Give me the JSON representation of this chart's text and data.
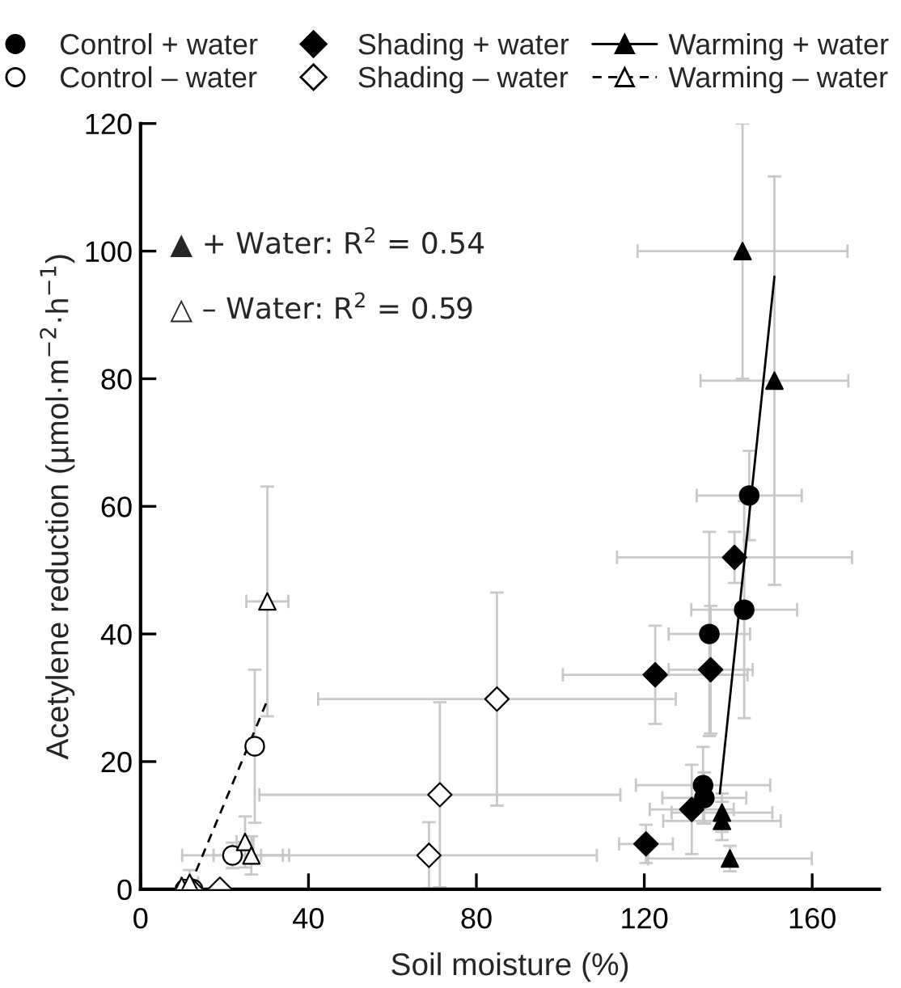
{
  "chart_data": {
    "type": "scatter",
    "xlabel": "Soil moisture (%)",
    "ylabel": "Acetylene reduction (µmol·m$^{−2}$·h$^{−1}$)",
    "xlim": [
      0,
      176
    ],
    "xticks": [
      0,
      40,
      80,
      120,
      160
    ],
    "ylim": [
      0,
      120
    ],
    "yticks": [
      0,
      20,
      40,
      60,
      80,
      100,
      120
    ],
    "grid": false,
    "legend": "top",
    "annotations": [
      "▲ + Water: R$^{2}$ = 0.54",
      "△ – Water: R$^{2}$ = 0.59"
    ],
    "series": [
      {
        "name": "Control + water",
        "marker": "circle",
        "color": "#000000",
        "x": [
          143.8,
          135.5,
          134,
          134.3,
          145
        ],
        "values": [
          43.8,
          40,
          16.3,
          14.3,
          61.7
        ],
        "errors": [
          17,
          16,
          6,
          4,
          7
        ],
        "xerrors": [
          12.6,
          9.7,
          16,
          10,
          12.5
        ]
      },
      {
        "name": "Control – water",
        "marker": "circle",
        "color": "#ffffff",
        "x": [
          27.2,
          21.9,
          12.5,
          10.6
        ],
        "values": [
          22.4,
          5.3,
          0,
          0
        ],
        "errors": [
          12,
          2,
          null,
          null
        ],
        "xerrors": [
          2,
          12,
          null,
          null
        ]
      },
      {
        "name": "Shading + water",
        "marker": "diamond",
        "color": "#000000",
        "x": [
          122.6,
          135.8,
          131.3,
          120.4,
          141.5
        ],
        "values": [
          33.6,
          34.4,
          12.5,
          7.1,
          52
        ],
        "errors": [
          7.7,
          10,
          7,
          3,
          4
        ],
        "xerrors": [
          22,
          10,
          10,
          6.4,
          28
        ]
      },
      {
        "name": "Shading – water",
        "marker": "diamond",
        "color": "#ffffff",
        "x": [
          84.9,
          71.3,
          68.7,
          18.9,
          12
        ],
        "values": [
          29.8,
          14.8,
          5.3,
          0,
          0
        ],
        "errors": [
          16.7,
          14.5,
          5.2,
          null,
          null
        ],
        "xerrors": [
          42.6,
          43,
          40,
          null,
          null
        ]
      },
      {
        "name": "Warming + water",
        "marker": "triangle",
        "line_style": "solid",
        "color": "#000000",
        "x": [
          143.4,
          151,
          138.5,
          138.5,
          140.4
        ],
        "values": [
          100,
          79.7,
          12,
          10.7,
          4.8
        ],
        "errors": [
          20,
          32,
          3,
          3,
          2
        ],
        "xerrors": [
          25,
          17.6,
          12,
          14,
          19.5
        ]
      },
      {
        "name": "Warming – water",
        "marker": "triangle",
        "line_style": "dashed",
        "color": "#ffffff",
        "x": [
          9.8,
          11.7,
          24.9,
          26.4,
          30.2
        ],
        "values": [
          0.5,
          1,
          7.4,
          5.3,
          45.1
        ],
        "errors": [
          null,
          2,
          4,
          3,
          18
        ],
        "xerrors": [
          null,
          2,
          2,
          9,
          5
        ]
      },
      {
        "type": "line",
        "line_style": "solid",
        "color": "#000000",
        "x": [
          138,
          151
        ],
        "values": [
          15,
          96
        ]
      },
      {
        "type": "line",
        "line_style": "dashed",
        "color": "#000000",
        "x": [
          13.2,
          30.2
        ],
        "values": [
          2.8,
          29.6
        ]
      }
    ]
  }
}
